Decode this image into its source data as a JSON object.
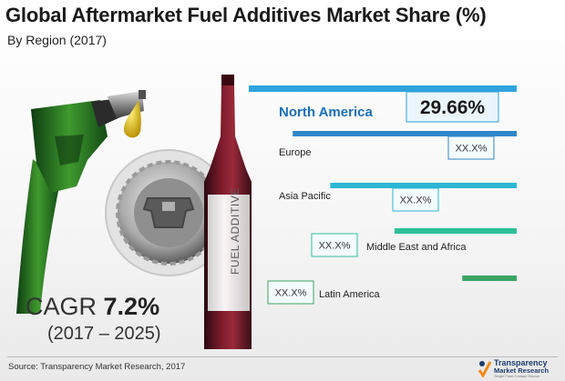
{
  "title": "Global Aftermarket Fuel Additives Market Share (%)",
  "subtitle": "By Region (2017)",
  "chart_data": {
    "type": "bar",
    "orientation": "horizontal",
    "title": "Global Aftermarket Fuel Additives Market Share (%)",
    "subtitle": "By Region (2017)",
    "categories": [
      "North America",
      "Europe",
      "Asia Pacific",
      "Middle East and Africa",
      "Latin America"
    ],
    "value_labels": [
      "29.66%",
      "XX.X%",
      "XX.X%",
      "XX.X%",
      "XX.X%"
    ],
    "values": [
      29.66,
      null,
      null,
      null,
      null
    ],
    "relative_bar_lengths": [
      1.0,
      0.836,
      0.696,
      0.456,
      0.203
    ],
    "bar_colors": [
      "#2fa4dd",
      "#2f86c8",
      "#2cb6d4",
      "#2fbf9a",
      "#3aa564"
    ],
    "xlabel": "",
    "ylabel": "",
    "grid": false,
    "legend": "none"
  },
  "cagr": {
    "prefix": "CAGR",
    "value": "7.2%",
    "period": "(2017 – 2025)"
  },
  "bottle_label": "FUEL ADDITIVE",
  "source": "Source: Transparency Market Research, 2017",
  "logo": {
    "line1": "Transparency",
    "line2": "Market Research",
    "tagline": "Single Point Contact Source"
  }
}
